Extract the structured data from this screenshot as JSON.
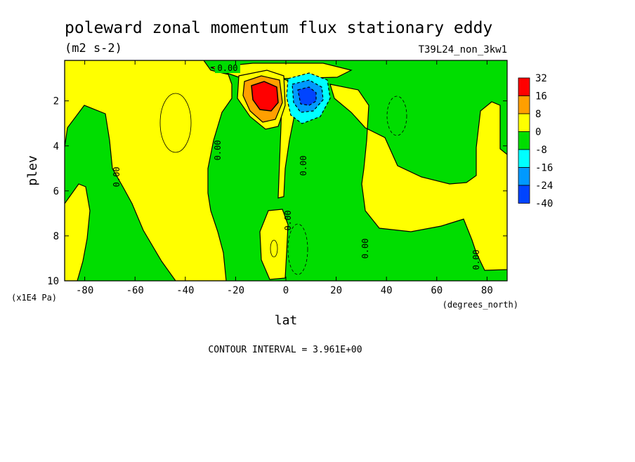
{
  "chart_data": {
    "type": "heatmap",
    "title": "poleward zonal momentum flux stationary eddy",
    "units": "(m2 s-2)",
    "experiment": "T39L24_non_3kw1",
    "xlabel": "lat",
    "ylabel": "plev",
    "x_units": "(degrees_north)",
    "y_units": "(x1E4 Pa)",
    "xlim": [
      -88,
      88
    ],
    "ylim": [
      10,
      0.2
    ],
    "x_ticks": [
      -80,
      -60,
      -40,
      -20,
      0,
      20,
      40,
      60,
      80
    ],
    "y_ticks": [
      2,
      4,
      6,
      8,
      10
    ],
    "contour_interval_text": "CONTOUR INTERVAL = 3.961E+00",
    "contour_zero_label": "0.00",
    "legend": {
      "placement": "right",
      "levels": [
        "32",
        "16",
        "8",
        "0",
        "-8",
        "-16",
        "-24",
        "-40"
      ],
      "colors": [
        "#ff0000",
        "#ff9f00",
        "#ffff00",
        "#00dd00",
        "#00ffff",
        "#0099ff",
        "#0044ff"
      ]
    },
    "features": [
      {
        "kind": "max",
        "lat": -8,
        "plev": 1.6,
        "band": "32"
      },
      {
        "kind": "min",
        "lat": 8,
        "plev": 1.7,
        "band": "-24"
      }
    ],
    "colors": {
      "green": "#00dd00",
      "yellow": "#ffff00",
      "orange": "#ff9f00",
      "red": "#ff0000",
      "cyan": "#00ffff",
      "lightblue": "#0099ff",
      "blue": "#0044ff"
    }
  }
}
